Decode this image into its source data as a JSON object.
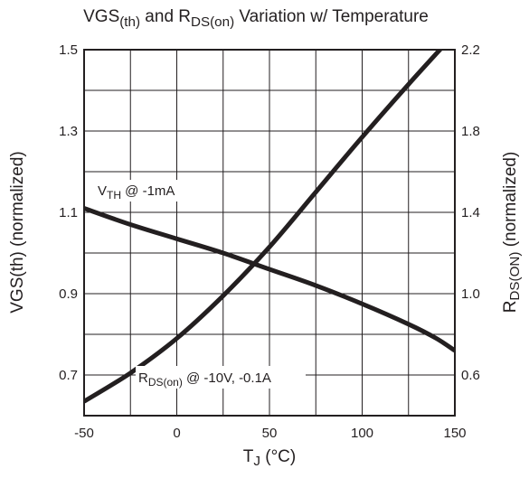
{
  "chart_data": {
    "type": "line",
    "title": {
      "main": "VGS",
      "main_sub": "(th)",
      "mid": " and R",
      "mid_sub": "DS(on)",
      "end": " Variation w/ Temperature"
    },
    "xlabel": {
      "main": "T",
      "sub": "J",
      "end": " (°C)"
    },
    "ylabel_left": {
      "main": "VGS(th) (normalized)"
    },
    "ylabel_right": {
      "main": "R",
      "sub": "DS(ON)",
      "end": " (normalized)"
    },
    "x_ticks": [
      "-50",
      "0",
      "50",
      "100",
      "150"
    ],
    "y_left_ticks": [
      "1.5",
      "1.3",
      "1.1",
      "0.9",
      "0.7"
    ],
    "y_right_ticks": [
      "2.2",
      "1.8",
      "1.4",
      "1.0",
      "0.6"
    ],
    "xlim": [
      -50,
      150
    ],
    "ylim_left": [
      0.6,
      1.5
    ],
    "ylim_right": [
      0.4,
      2.2
    ],
    "grid": true,
    "series": [
      {
        "name": {
          "main": "V",
          "sub": "TH",
          "end": " @ -1mA"
        },
        "axis": "left",
        "x": [
          -50,
          -25,
          0,
          25,
          50,
          75,
          100,
          125,
          140,
          150
        ],
        "y": [
          1.11,
          1.07,
          1.035,
          1.0,
          0.96,
          0.92,
          0.875,
          0.825,
          0.79,
          0.76
        ]
      },
      {
        "name": {
          "main": "R",
          "sub": "DS(on)",
          "end": " @ -10V, -0.1A"
        },
        "axis": "right",
        "x": [
          -50,
          -25,
          0,
          25,
          50,
          75,
          100,
          125,
          150
        ],
        "y": [
          0.47,
          0.61,
          0.78,
          0.99,
          1.23,
          1.5,
          1.77,
          2.03,
          2.28
        ]
      }
    ]
  }
}
